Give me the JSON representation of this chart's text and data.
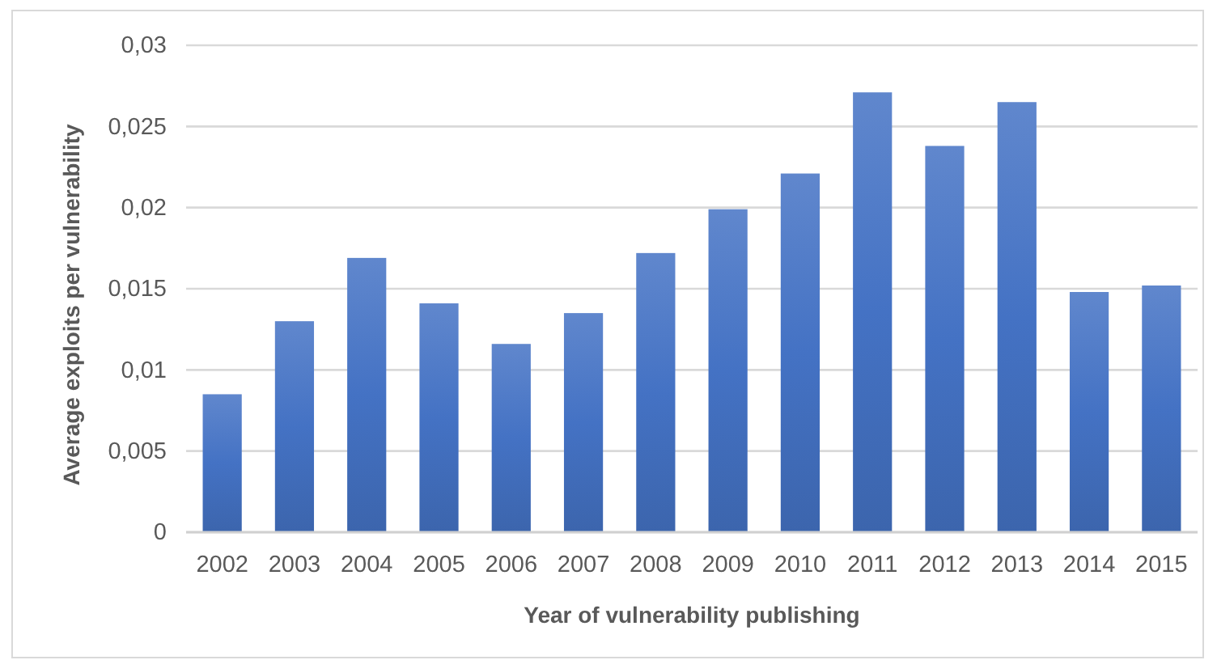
{
  "chart_data": {
    "type": "bar",
    "xlabel": "Year of vulnerability publishing",
    "ylabel": "Average exploits per vulnerability",
    "categories": [
      "2002",
      "2003",
      "2004",
      "2005",
      "2006",
      "2007",
      "2008",
      "2009",
      "2010",
      "2011",
      "2012",
      "2013",
      "2014",
      "2015"
    ],
    "values": [
      0.0085,
      0.013,
      0.0169,
      0.0141,
      0.0116,
      0.0135,
      0.0172,
      0.0199,
      0.0221,
      0.0271,
      0.0238,
      0.0265,
      0.0148,
      0.0152
    ],
    "color": "#4472c4",
    "ylim": [
      0,
      0.03
    ],
    "yticks": [
      {
        "value": 0,
        "label": "0"
      },
      {
        "value": 0.005,
        "label": "0,005"
      },
      {
        "value": 0.01,
        "label": "0,01"
      },
      {
        "value": 0.015,
        "label": "0,015"
      },
      {
        "value": 0.02,
        "label": "0,02"
      },
      {
        "value": 0.025,
        "label": "0,025"
      },
      {
        "value": 0.03,
        "label": "0,03"
      }
    ],
    "grid": "y"
  }
}
